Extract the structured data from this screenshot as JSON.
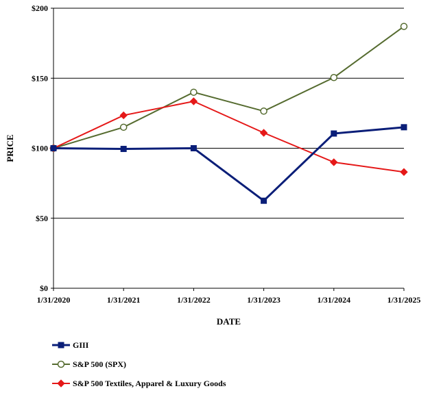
{
  "chart_data": {
    "type": "line",
    "title": "",
    "xlabel": "DATE",
    "ylabel": "PRICE",
    "categories": [
      "1/31/2020",
      "1/31/2021",
      "1/31/2022",
      "1/31/2023",
      "1/31/2024",
      "1/31/2025"
    ],
    "ylim": [
      0,
      200
    ],
    "yticks": [
      0,
      50,
      100,
      150,
      200
    ],
    "ytick_labels": [
      "$0",
      "$50",
      "$100",
      "$150",
      "$200"
    ],
    "grid": "horizontal",
    "legend_position": "bottom-left",
    "series": [
      {
        "name": "GIII",
        "values": [
          100,
          99.5,
          100,
          62.5,
          110.5,
          115
        ],
        "color": "#0a1e78",
        "marker": "square",
        "marker_fill": "#0a1e78"
      },
      {
        "name": "S&P 500 (SPX)",
        "values": [
          100,
          115,
          140,
          126.5,
          150.5,
          187
        ],
        "color": "#556b2f",
        "marker": "circle-open",
        "marker_fill": "#ffffff"
      },
      {
        "name": "S&P 500 Textiles, Apparel & Luxury Goods",
        "values": [
          100,
          123.5,
          133.5,
          111,
          90,
          83
        ],
        "color": "#e51818",
        "marker": "diamond",
        "marker_fill": "#e51818"
      }
    ]
  }
}
